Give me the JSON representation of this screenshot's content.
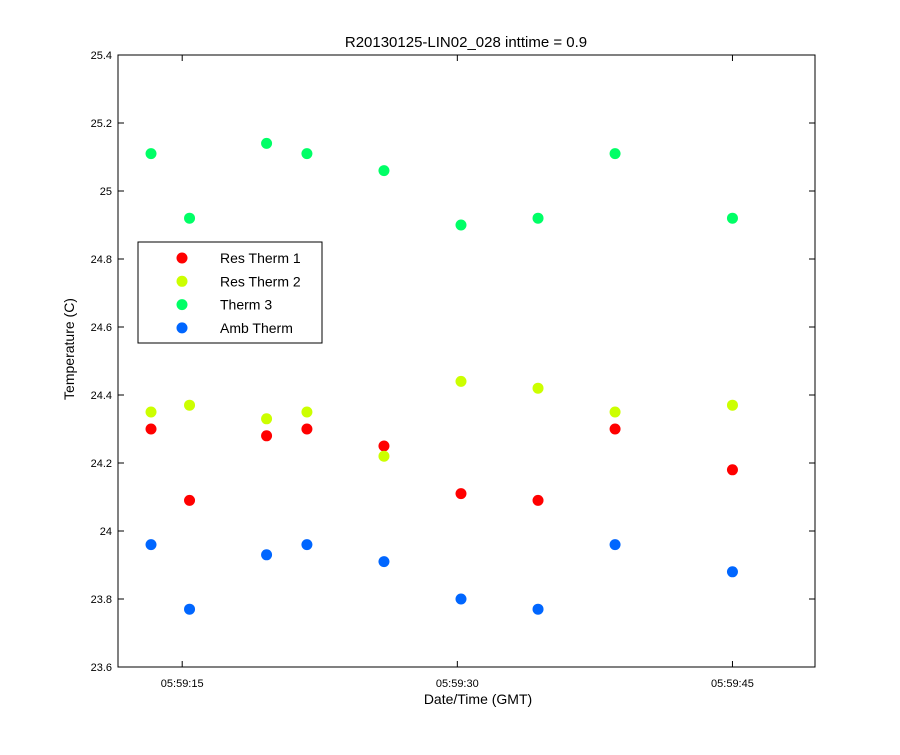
{
  "chart_data": {
    "type": "scatter",
    "title": "R20130125-LIN02_028 inttime = 0.9",
    "xlabel": "Date/Time (GMT)",
    "ylabel": "Temperature (C)",
    "ylim": [
      23.6,
      25.4
    ],
    "yticks": [
      23.6,
      23.8,
      24,
      24.2,
      24.4,
      24.6,
      24.8,
      25,
      25.2,
      25.4
    ],
    "ytick_labels": [
      "23.6",
      "23.8",
      "24",
      "24.2",
      "24.4",
      "24.6",
      "24.8",
      "25",
      "25.2",
      "25.4"
    ],
    "xlim": [
      "05:59:11.5",
      "05:59:49.5"
    ],
    "xticks": [
      "05:59:15",
      "05:59:30",
      "05:59:45"
    ],
    "xtick_labels": [
      "05:59:15",
      "05:59:30",
      "05:59:45"
    ],
    "x": [
      "05:59:13.3",
      "05:59:15.4",
      "05:59:17.5",
      "05:59:19.6",
      "05:59:21.8",
      "05:59:23.9",
      "05:59:26.0",
      "05:59:28.1",
      "05:59:30.2",
      "05:59:32.3",
      "05:59:34.4",
      "05:59:36.5",
      "05:59:38.6",
      "05:59:40.7",
      "05:59:42.9",
      "05:59:45.0"
    ],
    "grid": false,
    "legend_position": "left",
    "series": [
      {
        "name": "Res Therm 1",
        "color": "#ff0000",
        "x": [
          "05:59:13.3",
          "05:59:15.4",
          "05:59:19.6",
          "05:59:21.8",
          "05:59:26.0",
          "05:59:30.2",
          "05:59:34.4",
          "05:59:38.6",
          "05:59:45.0"
        ],
        "values": [
          24.3,
          24.09,
          24.28,
          24.3,
          24.25,
          24.11,
          24.09,
          24.3,
          24.18
        ]
      },
      {
        "name": "Res Therm 2",
        "color": "#ccff00",
        "x": [
          "05:59:13.3",
          "05:59:15.4",
          "05:59:19.6",
          "05:59:21.8",
          "05:59:26.0",
          "05:59:30.2",
          "05:59:34.4",
          "05:59:38.6",
          "05:59:45.0"
        ],
        "values": [
          24.35,
          24.37,
          24.33,
          24.35,
          24.22,
          24.44,
          24.42,
          24.35,
          24.37
        ]
      },
      {
        "name": "Therm 3",
        "color": "#00ff66",
        "x": [
          "05:59:13.3",
          "05:59:15.4",
          "05:59:19.6",
          "05:59:21.8",
          "05:59:26.0",
          "05:59:30.2",
          "05:59:34.4",
          "05:59:38.6",
          "05:59:45.0"
        ],
        "values": [
          25.11,
          24.92,
          25.14,
          25.11,
          25.06,
          24.9,
          24.92,
          25.11,
          24.92
        ]
      },
      {
        "name": "Amb Therm",
        "color": "#0066ff",
        "x": [
          "05:59:13.3",
          "05:59:15.4",
          "05:59:19.6",
          "05:59:21.8",
          "05:59:26.0",
          "05:59:30.2",
          "05:59:34.4",
          "05:59:38.6",
          "05:59:45.0"
        ],
        "values": [
          23.96,
          23.77,
          23.93,
          23.96,
          23.91,
          23.8,
          23.77,
          23.96,
          23.88
        ]
      }
    ]
  }
}
